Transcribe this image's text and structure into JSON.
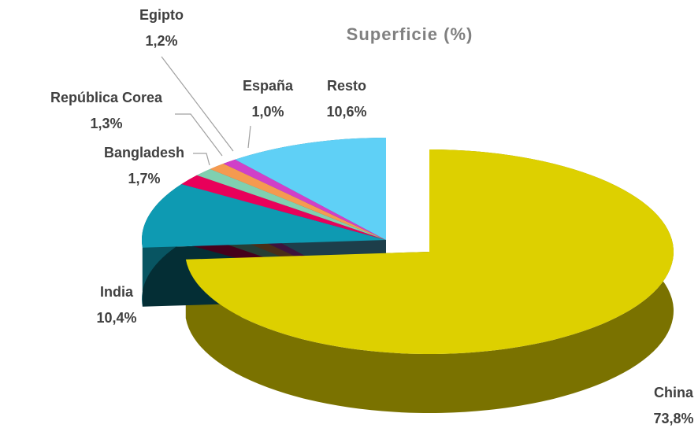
{
  "chart_data": {
    "type": "pie",
    "title": "Superficie (%)",
    "categories": [
      "China",
      "India",
      "Bangladesh",
      "República Corea",
      "Egipto",
      "España",
      "Resto"
    ],
    "values": [
      73.8,
      10.4,
      1.7,
      1.3,
      1.2,
      1.0,
      10.6
    ],
    "value_labels": [
      "73,8%",
      "10,4%",
      "1,7%",
      "1,3%",
      "1,2%",
      "1,0%",
      "10,6%"
    ],
    "colors": [
      "#ddd000",
      "#0e9ab2",
      "#e8005a",
      "#80d0b0",
      "#f59a50",
      "#d040c8",
      "#5fd0f6"
    ]
  }
}
